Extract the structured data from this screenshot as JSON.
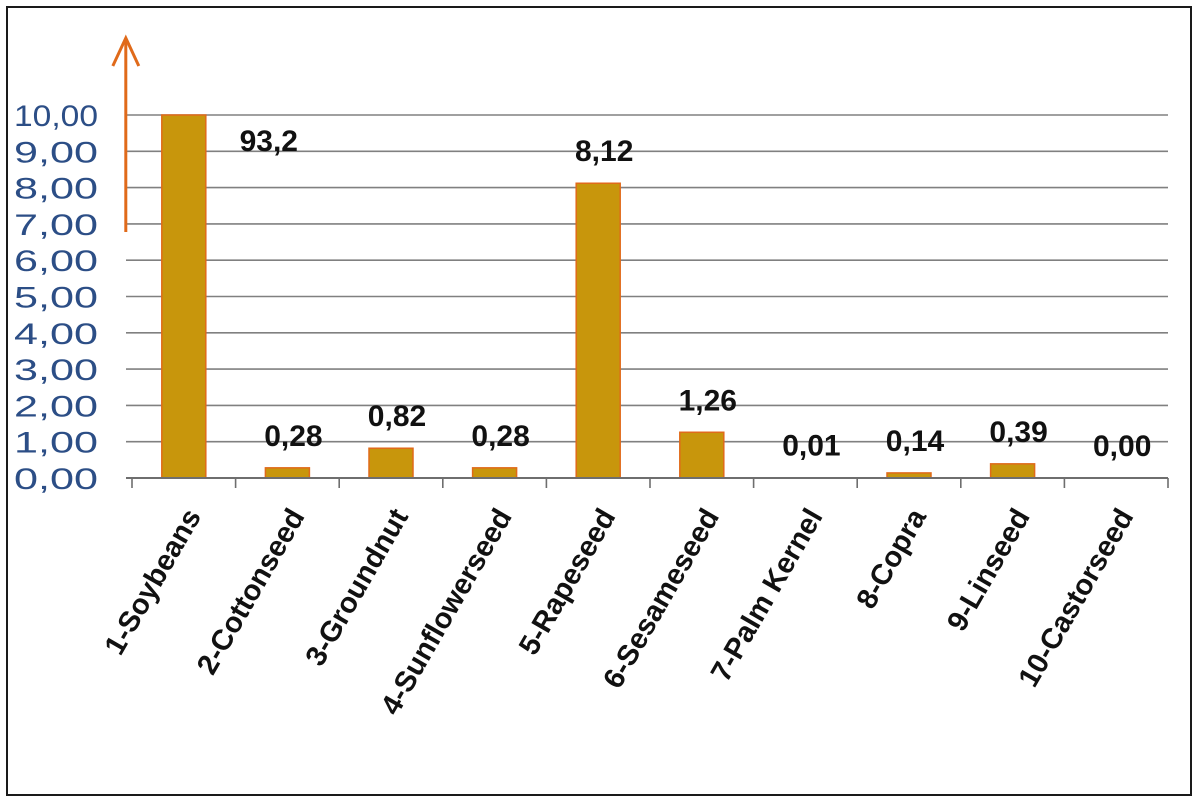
{
  "chart_data": {
    "type": "bar",
    "categories": [
      "1-Soybeans",
      "2-Cottonseed",
      "3-Groundnut",
      "4-Sunflowerseed",
      "5-Rapeseed",
      "6-Sesameseed",
      "7-Palm Kernel",
      "8-Copra",
      "9-Linseed",
      "10-Castorseed"
    ],
    "values": [
      93.2,
      0.28,
      0.82,
      0.28,
      8.12,
      1.26,
      0.01,
      0.14,
      0.39,
      0.0
    ],
    "data_labels": [
      "93,2",
      "0,28",
      "0,82",
      "0,28",
      "8,12",
      "1,26",
      "0,01",
      "0,14",
      "0,39",
      "0,00"
    ],
    "y_ticks": [
      "0,00",
      "1,00",
      "2,00",
      "3,00",
      "4,00",
      "5,00",
      "6,00",
      "7,00",
      "8,00",
      "9,00",
      "10,00"
    ],
    "ylim": [
      0,
      10
    ],
    "axis_break": "value exceeds axis maximum (arrow)",
    "grid": true,
    "bar_color": "#c8960c",
    "bar_edge_color": "#e06a1a",
    "arrow_color": "#e06a1a",
    "grid_color": "#808080"
  }
}
